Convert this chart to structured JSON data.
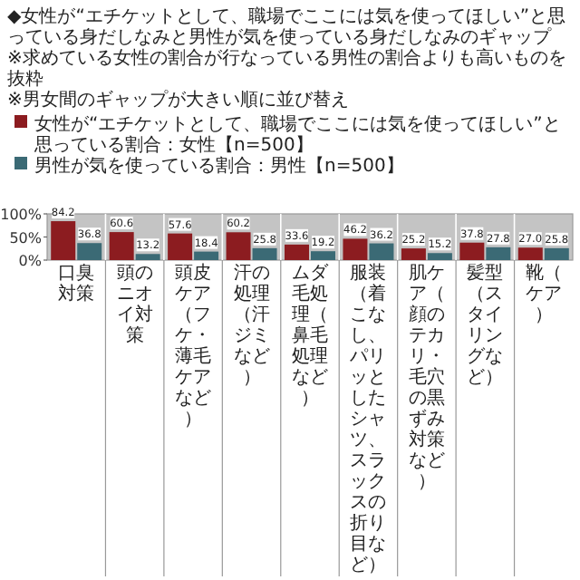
{
  "chart_data": {
    "type": "bar",
    "title": "◆女性が“エチケットとして、職場でここには気を使ってほしい”と思っている身だしなみと男性が気を使っている身だしなみのギャップ",
    "annotations": [
      "※求めている女性の割合が行なっている男性の割合よりも高いものを抜粋",
      "※男女間のギャップが大きい順に並び替え"
    ],
    "categories": [
      "口臭対策",
      "頭のニオイ対策",
      "頭皮ケア（フケ・薄毛ケアなど）",
      "汗の処理（汗ジミなど）",
      "ムダ毛処理（鼻毛処理など）",
      "服装（着こなし、パリッとしたシャツ、スラックスの折り目など）",
      "肌ケア（顔のテカリ・毛穴の黒ずみ対策など）",
      "髪型（スタイリングなど）",
      "靴（ケア）"
    ],
    "series": [
      {
        "name": "女性が“エチケットとして、職場でここには気を使ってほしい”と思っている割合：女性【n=500】",
        "color": "#8c1c20",
        "values": [
          84.2,
          60.6,
          57.6,
          60.2,
          33.6,
          46.2,
          25.2,
          37.8,
          27.0
        ],
        "value_labels": [
          "84.2",
          "60.6",
          "57.6",
          "60.2",
          "33.6",
          "46.2",
          "25.2",
          "37.8",
          "27.0"
        ]
      },
      {
        "name": "男性が気を使っている割合：男性【n=500】",
        "color": "#3b6a75",
        "values": [
          36.8,
          13.2,
          18.4,
          25.8,
          19.2,
          36.2,
          15.2,
          27.8,
          25.8
        ],
        "value_labels": [
          "36.8",
          "13.2",
          "18.4",
          "25.8",
          "19.2",
          "36.2",
          "15.2",
          "27.8",
          "25.8"
        ]
      }
    ],
    "ylim": [
      0,
      100
    ],
    "yticks": [
      {
        "value": 0,
        "label": "0%"
      },
      {
        "value": 50,
        "label": "50%"
      },
      {
        "value": 100,
        "label": "100%"
      }
    ],
    "legend": "top",
    "grid": false
  }
}
